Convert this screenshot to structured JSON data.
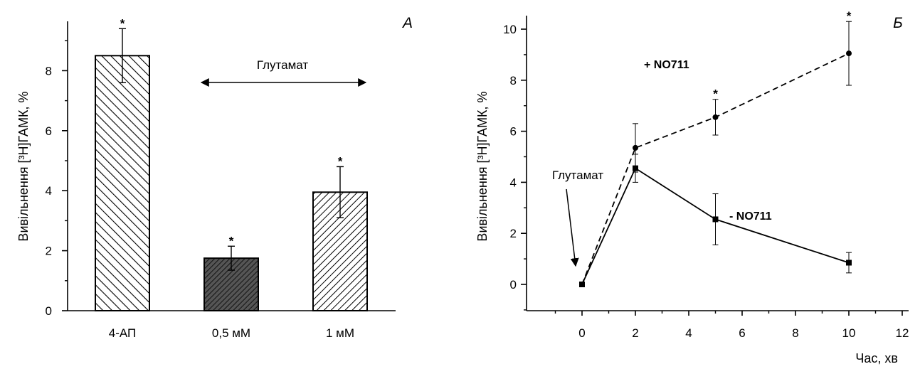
{
  "chart_data": [
    {
      "type": "bar",
      "panel_label": "А",
      "ylabel": "Вивільнення [³H]ГАМК, %",
      "ylim": [
        0,
        10
      ],
      "yticks": [
        0,
        2,
        4,
        6,
        8
      ],
      "categories": [
        "4-АП",
        "0,5 мМ",
        "1 мМ"
      ],
      "values": [
        8.5,
        1.75,
        3.95
      ],
      "errors": [
        0.9,
        0.4,
        0.85
      ],
      "significant": [
        true,
        true,
        true
      ],
      "star_label": "*",
      "bar_fills": [
        "light-diagonal-hatch",
        "dense-crosshatch-dark",
        "right-diagonal-hatch"
      ],
      "annotation": {
        "text": "Глутамат",
        "spans_categories": [
          "0,5 мМ",
          "1 мМ"
        ],
        "arrow": "double-headed"
      }
    },
    {
      "type": "line",
      "panel_label": "Б",
      "xlabel": "Час, хв",
      "ylabel": "Вивільнення [³H]ГАМК, %",
      "xlim": [
        -2,
        12
      ],
      "ylim": [
        -1,
        10.5
      ],
      "xticks": [
        0,
        2,
        4,
        6,
        8,
        10,
        12
      ],
      "yticks": [
        0,
        2,
        4,
        6,
        8,
        10
      ],
      "x": [
        0,
        2,
        5,
        10
      ],
      "series": [
        {
          "name": "+ NO711",
          "values": [
            0,
            5.35,
            6.55,
            9.05
          ],
          "errors": [
            0,
            0.95,
            0.7,
            1.25
          ],
          "significant": [
            false,
            false,
            true,
            true
          ],
          "line_style": "dashed",
          "marker": "circle"
        },
        {
          "name": "- NO711",
          "values": [
            0,
            4.55,
            2.55,
            0.85
          ],
          "errors": [
            0,
            0.55,
            1.0,
            0.4
          ],
          "significant": [
            false,
            false,
            false,
            false
          ],
          "line_style": "solid",
          "marker": "square"
        }
      ],
      "star_label": "*",
      "annotation": {
        "text": "Глутамат",
        "points_to_x": 0,
        "arrow": "single-headed"
      }
    }
  ]
}
